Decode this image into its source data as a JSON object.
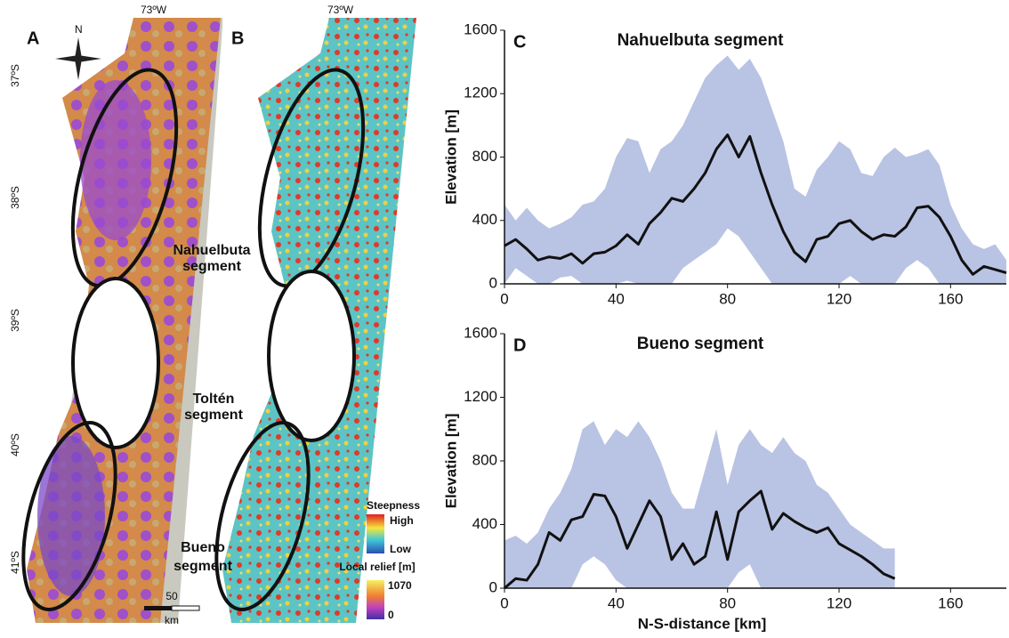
{
  "maps": {
    "panel_a": "A",
    "panel_b": "B",
    "north": "N",
    "longitude_a": "73ºW",
    "longitude_b": "73ºW",
    "latitudes": [
      "37ºS",
      "38ºS",
      "39ºS",
      "40ºS",
      "41ºS"
    ],
    "segments": [
      [
        "Nahuelbuta",
        "segment"
      ],
      [
        "Toltén",
        "segment"
      ],
      [
        "Bueno",
        "segment"
      ]
    ],
    "scale_value": "50",
    "scale_unit": "km",
    "steepness_title": "Steepness",
    "steepness_high": "High",
    "steepness_low": "Low",
    "relief_title": "Local relief [m]",
    "relief_max": "1070",
    "relief_min": "0"
  },
  "chart_data": [
    {
      "type": "line",
      "panel_label": "C",
      "title": "Nahuelbuta segment",
      "y_label": "Elevation [m]",
      "color": "#111111",
      "band_color": "#b9c3e3",
      "x": [
        0,
        4,
        8,
        12,
        16,
        20,
        24,
        28,
        32,
        36,
        40,
        44,
        48,
        52,
        56,
        60,
        64,
        68,
        72,
        76,
        80,
        84,
        88,
        92,
        96,
        100,
        104,
        108,
        112,
        116,
        120,
        124,
        128,
        132,
        136,
        140,
        144,
        148,
        152,
        156,
        160,
        164,
        168,
        172,
        176,
        180
      ],
      "values": [
        240,
        280,
        220,
        150,
        170,
        160,
        190,
        130,
        190,
        200,
        240,
        310,
        250,
        380,
        450,
        540,
        520,
        600,
        700,
        850,
        940,
        800,
        930,
        700,
        500,
        330,
        200,
        140,
        280,
        300,
        380,
        400,
        330,
        280,
        310,
        300,
        360,
        480,
        490,
        420,
        300,
        150,
        60,
        110,
        90,
        70
      ],
      "range_low": [
        0,
        100,
        50,
        0,
        0,
        40,
        50,
        0,
        0,
        0,
        0,
        20,
        0,
        0,
        0,
        0,
        100,
        150,
        200,
        250,
        350,
        300,
        200,
        100,
        0,
        0,
        0,
        0,
        0,
        0,
        0,
        50,
        0,
        0,
        0,
        0,
        100,
        150,
        100,
        0,
        0,
        0,
        0,
        0,
        0,
        0
      ],
      "range_high": [
        500,
        400,
        480,
        400,
        350,
        380,
        420,
        500,
        520,
        600,
        800,
        920,
        900,
        700,
        850,
        900,
        1000,
        1150,
        1300,
        1380,
        1440,
        1350,
        1420,
        1300,
        1100,
        900,
        600,
        550,
        720,
        800,
        900,
        850,
        700,
        680,
        800,
        860,
        800,
        820,
        850,
        750,
        500,
        350,
        250,
        220,
        250,
        150
      ],
      "xlim": [
        0,
        180
      ],
      "ylim": [
        0,
        1600
      ],
      "xticks": [
        0,
        40,
        80,
        120,
        160
      ],
      "yticks": [
        0,
        400,
        800,
        1200,
        1600
      ]
    },
    {
      "type": "line",
      "panel_label": "D",
      "title": "Bueno segment",
      "y_label": "Elevation [m]",
      "x_label": "N-S-distance [km]",
      "color": "#111111",
      "band_color": "#b9c3e3",
      "x": [
        0,
        4,
        8,
        12,
        16,
        20,
        24,
        28,
        32,
        36,
        40,
        44,
        48,
        52,
        56,
        60,
        64,
        68,
        72,
        76,
        80,
        84,
        88,
        92,
        96,
        100,
        104,
        108,
        112,
        116,
        120,
        124,
        128,
        132,
        136,
        140
      ],
      "values": [
        0,
        60,
        50,
        150,
        350,
        300,
        430,
        450,
        590,
        580,
        450,
        250,
        400,
        550,
        450,
        180,
        280,
        150,
        200,
        480,
        180,
        480,
        550,
        610,
        370,
        470,
        420,
        380,
        350,
        380,
        280,
        240,
        200,
        150,
        90,
        60
      ],
      "range_low": [
        0,
        0,
        0,
        0,
        0,
        0,
        0,
        150,
        200,
        150,
        50,
        0,
        0,
        0,
        0,
        0,
        0,
        0,
        0,
        0,
        0,
        100,
        150,
        0,
        0,
        0,
        0,
        0,
        0,
        0,
        0,
        0,
        0,
        0,
        0,
        0
      ],
      "range_high": [
        300,
        330,
        280,
        350,
        500,
        600,
        750,
        1000,
        1050,
        900,
        1000,
        950,
        1050,
        950,
        800,
        600,
        500,
        500,
        750,
        1000,
        650,
        900,
        1000,
        900,
        850,
        950,
        850,
        800,
        650,
        600,
        500,
        400,
        350,
        300,
        250,
        250
      ],
      "xlim": [
        0,
        180
      ],
      "ylim": [
        0,
        1600
      ],
      "xticks": [
        0,
        40,
        80,
        120,
        160
      ],
      "yticks": [
        0,
        400,
        800,
        1200,
        1600
      ]
    }
  ]
}
